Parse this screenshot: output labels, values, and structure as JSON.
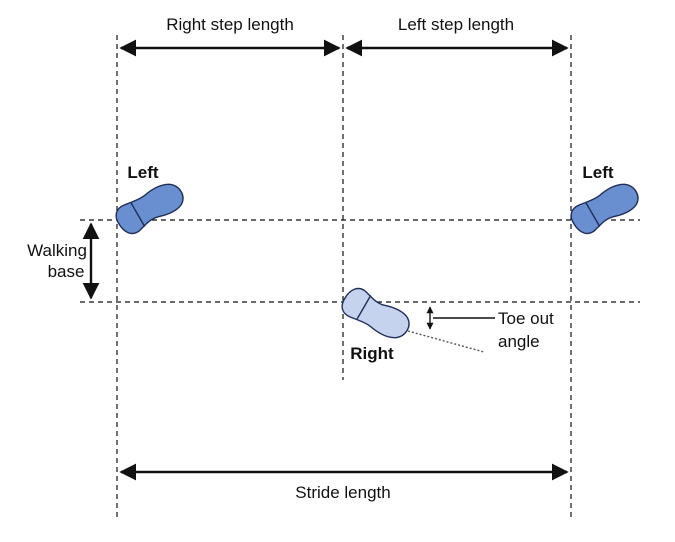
{
  "labels": {
    "right_step_length": "Right step length",
    "left_step_length": "Left step length",
    "left_top": "Left",
    "left_right_side": "Left",
    "walking_base_line1": "Walking",
    "walking_base_line2": "base",
    "right_foot": "Right",
    "toe_out_line1": "Toe out",
    "toe_out_line2": "angle",
    "stride_length": "Stride length"
  },
  "colors": {
    "left_foot_fill": "#6a8fd0",
    "right_foot_fill": "#c6d3ee",
    "foot_stroke": "#1f2f5a",
    "line": "#111111"
  }
}
